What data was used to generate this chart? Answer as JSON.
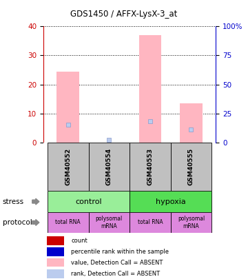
{
  "title": "GDS1450 / AFFX-LysX-3_at",
  "samples": [
    "GSM40552",
    "GSM40554",
    "GSM40553",
    "GSM40555"
  ],
  "bar_values": [
    24.5,
    0.0,
    37.0,
    13.5
  ],
  "rank_values": [
    15.0,
    2.0,
    18.0,
    11.0
  ],
  "left_ylim": [
    0,
    40
  ],
  "right_ylim": [
    0,
    100
  ],
  "left_yticks": [
    0,
    10,
    20,
    30,
    40
  ],
  "right_yticks": [
    0,
    25,
    50,
    75,
    100
  ],
  "bar_color": "#FFB6C1",
  "rank_color": "#BBCCEE",
  "sample_bg_color": "#C0C0C0",
  "stress_spans": [
    [
      0,
      2,
      "control",
      "#99EE99"
    ],
    [
      2,
      4,
      "hypoxia",
      "#55DD55"
    ]
  ],
  "protocol_labels": [
    "total RNA",
    "polysomal\nmRNA",
    "total RNA",
    "polysomal\nmRNA"
  ],
  "protocol_color": "#DD88DD",
  "legend_items": [
    {
      "color": "#CC0000",
      "label": "count"
    },
    {
      "color": "#0000CC",
      "label": "percentile rank within the sample"
    },
    {
      "color": "#FFB6C1",
      "label": "value, Detection Call = ABSENT"
    },
    {
      "color": "#BBCCEE",
      "label": "rank, Detection Call = ABSENT"
    }
  ],
  "left_axis_color": "#CC0000",
  "right_axis_color": "#0000CC",
  "side_labels": [
    "stress",
    "protocol"
  ]
}
